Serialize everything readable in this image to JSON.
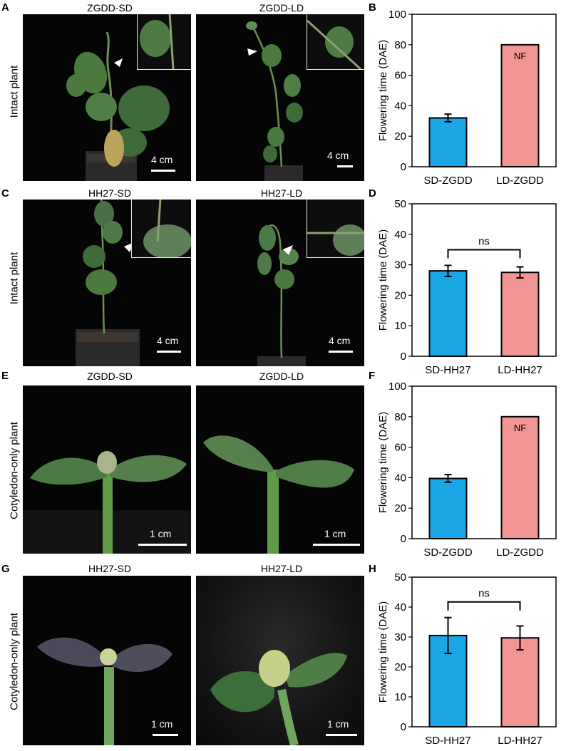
{
  "panel_labels": {
    "A": "A",
    "B": "B",
    "C": "C",
    "D": "D",
    "E": "E",
    "F": "F",
    "G": "G",
    "H": "H"
  },
  "row_labels": [
    "Intact plant",
    "Intact plant",
    "Cotyledon-only plant",
    "Cotyledon-only plant"
  ],
  "photo_titles": {
    "a_left": "ZGDD-SD",
    "a_right": "ZGDD-LD",
    "c_left": "HH27-SD",
    "c_right": "HH27-LD",
    "e_left": "ZGDD-SD",
    "e_right": "ZGDD-LD",
    "g_left": "HH27-SD",
    "g_right": "HH27-LD"
  },
  "scale_bars": {
    "a_left": "4 cm",
    "a_right": "4 cm",
    "c_left": "4 cm",
    "c_right": "4 cm",
    "e_left": "1 cm",
    "e_right": "1 cm",
    "g_left": "1 cm",
    "g_right": "1 cm"
  },
  "colors": {
    "sd": "#1ba6e6",
    "ld": "#f29494",
    "background": "#ffffff",
    "photo_bg": "#050505",
    "leaf": "#3f6b3a",
    "leaf_light": "#5f8f52"
  },
  "chart_data": [
    {
      "panel": "B",
      "type": "bar",
      "categories": [
        "SD-ZGDD",
        "LD-ZGDD"
      ],
      "values": [
        32,
        80
      ],
      "errors": [
        2.5,
        0
      ],
      "bar_labels": [
        "",
        "NF"
      ],
      "ylabel": "Flowering time (DAE)",
      "ylim": [
        0,
        100
      ],
      "yticks": [
        0,
        20,
        40,
        60,
        80,
        100
      ],
      "significance": ""
    },
    {
      "panel": "D",
      "type": "bar",
      "categories": [
        "SD-HH27",
        "LD-HH27"
      ],
      "values": [
        28,
        27.5
      ],
      "errors": [
        1.8,
        1.8
      ],
      "bar_labels": [
        "",
        ""
      ],
      "ylabel": "Flowering time (DAE)",
      "ylim": [
        0,
        50
      ],
      "yticks": [
        0,
        10,
        20,
        30,
        40,
        50
      ],
      "significance": "ns"
    },
    {
      "panel": "F",
      "type": "bar",
      "categories": [
        "SD-ZGDD",
        "LD-ZGDD"
      ],
      "values": [
        39.5,
        80
      ],
      "errors": [
        2.5,
        0
      ],
      "bar_labels": [
        "",
        "NF"
      ],
      "ylabel": "Flowering time (DAE)",
      "ylim": [
        0,
        100
      ],
      "yticks": [
        0,
        20,
        40,
        60,
        80,
        100
      ],
      "significance": ""
    },
    {
      "panel": "H",
      "type": "bar",
      "categories": [
        "SD-HH27",
        "LD-HH27"
      ],
      "values": [
        30.5,
        29.7
      ],
      "errors": [
        6,
        4
      ],
      "bar_labels": [
        "",
        ""
      ],
      "ylabel": "Flowering time (DAE)",
      "ylim": [
        0,
        50
      ],
      "yticks": [
        0,
        10,
        20,
        30,
        40,
        50
      ],
      "significance": "ns"
    }
  ]
}
